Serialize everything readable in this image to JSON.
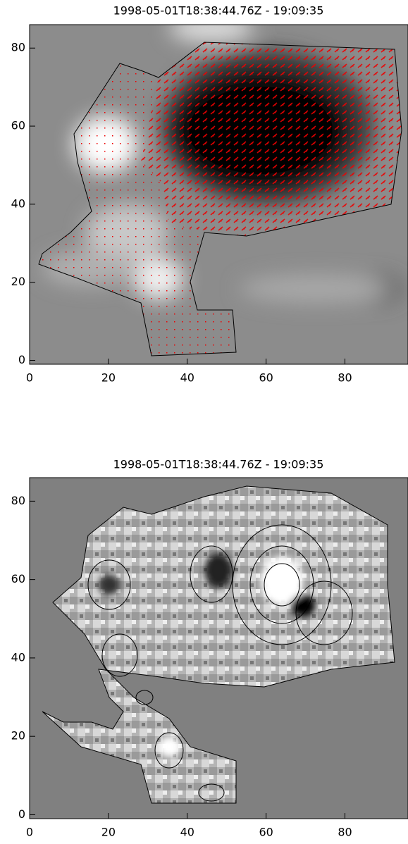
{
  "chart_data": [
    {
      "type": "image",
      "title": "1998-05-01T18:38:44.76Z - 19:09:35",
      "xlim": [
        0,
        96
      ],
      "ylim": [
        -1,
        86
      ],
      "xticks": [
        0,
        20,
        40,
        60,
        80
      ],
      "yticks": [
        0,
        20,
        40,
        60,
        80
      ]
    },
    {
      "type": "image",
      "title": "1998-05-01T18:38:44.76Z - 19:09:35",
      "xlim": [
        0,
        96
      ],
      "ylim": [
        -1,
        86
      ],
      "xticks": [
        0,
        20,
        40,
        60,
        80
      ],
      "yticks": [
        0,
        20,
        40,
        60,
        80
      ]
    }
  ]
}
